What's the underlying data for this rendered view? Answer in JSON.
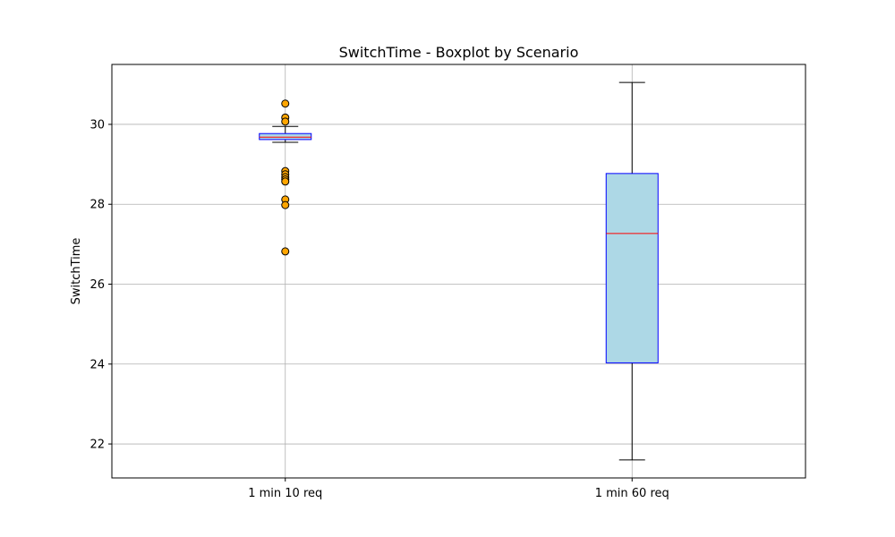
{
  "chart_data": {
    "type": "boxplot",
    "title": "SwitchTime - Boxplot by Scenario",
    "xlabel": "",
    "ylabel": "SwitchTime",
    "ylim": [
      21.15,
      31.5
    ],
    "yticks": [
      22,
      24,
      26,
      28,
      30
    ],
    "grid": true,
    "categories": [
      "1 min 10 req",
      "1 min 60 req"
    ],
    "boxes": [
      {
        "category": "1 min 10 req",
        "whisker_low": 29.55,
        "q1": 29.62,
        "median": 29.68,
        "q3": 29.77,
        "whisker_high": 29.95,
        "outliers": [
          30.52,
          30.17,
          30.07,
          28.83,
          28.75,
          28.68,
          28.62,
          28.57,
          28.12,
          27.98,
          26.82
        ]
      },
      {
        "category": "1 min 60 req",
        "whisker_low": 21.6,
        "q1": 24.03,
        "median": 27.27,
        "q3": 28.77,
        "whisker_high": 31.05,
        "outliers": []
      }
    ],
    "colors": {
      "box_fill": "#add8e6",
      "box_edge": "#0000ff",
      "median": "#ff0000",
      "whisker": "#000000",
      "outlier_fill": "#ffa500",
      "outlier_edge": "#000000",
      "grid": "#b0b0b0"
    }
  }
}
